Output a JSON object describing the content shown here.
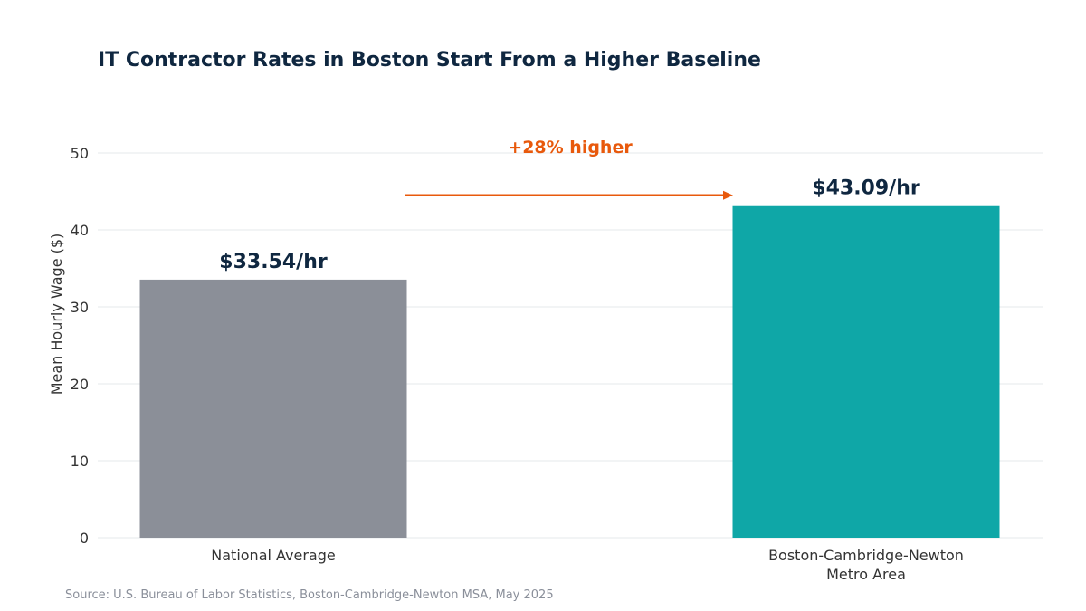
{
  "title": "IT Contractor Rates in Boston Start From a Higher Baseline",
  "source": "Source: U.S. Bureau of Labor Statistics, Boston-Cambridge-Newton MSA, May 2025",
  "chart_data": {
    "type": "bar",
    "categories": [
      [
        "National Average"
      ],
      [
        "Boston-Cambridge-Newton",
        "Metro Area"
      ]
    ],
    "values": [
      33.54,
      43.09
    ],
    "data_labels": [
      "$33.54/hr",
      "$43.09/hr"
    ],
    "bar_colors": [
      "#8b8f98",
      "#0fa7a7"
    ],
    "ylabel": "Mean Hourly Wage ($)",
    "ylim": [
      0,
      50
    ],
    "yticks": [
      0,
      10,
      20,
      30,
      40,
      50
    ],
    "grid": true,
    "annotation": {
      "text": "+28% higher",
      "color": "#e8590c"
    }
  }
}
